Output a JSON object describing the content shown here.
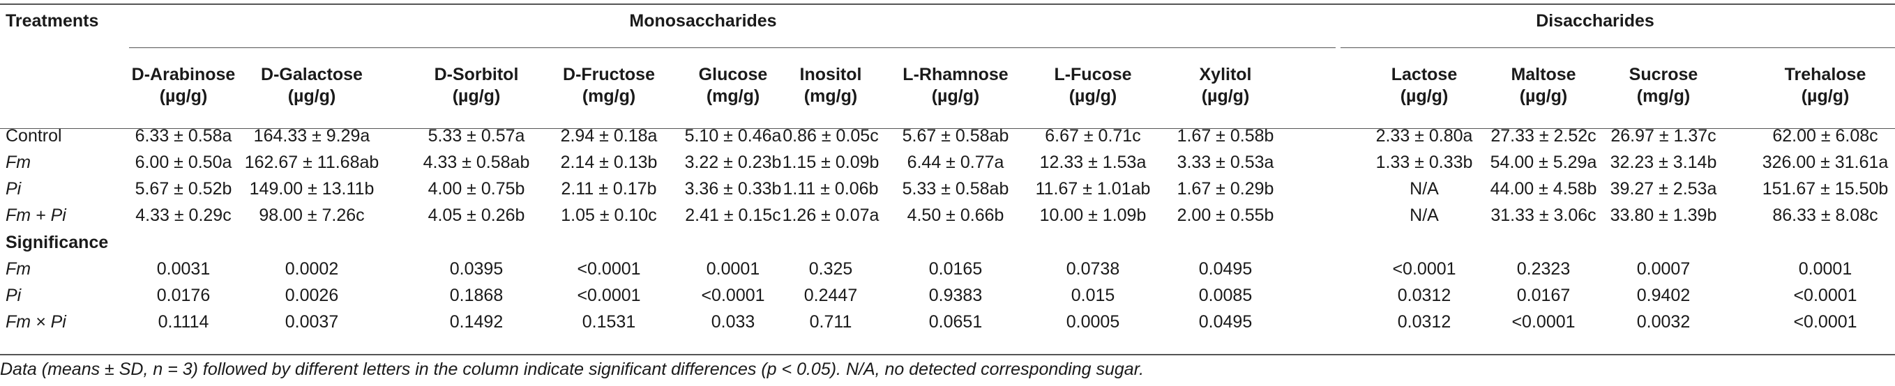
{
  "table": {
    "treatments_label": "Treatments",
    "group_mono": "Monosaccharides",
    "group_di": "Disaccharides",
    "columns": [
      {
        "name": "D-Arabinose",
        "unit": "(µg/g)"
      },
      {
        "name": "D-Galactose",
        "unit": "(µg/g)"
      },
      {
        "name": "D-Sorbitol",
        "unit": "(µg/g)"
      },
      {
        "name": "D-Fructose",
        "unit": "(mg/g)"
      },
      {
        "name": "Glucose",
        "unit": "(mg/g)"
      },
      {
        "name": "Inositol",
        "unit": "(mg/g)"
      },
      {
        "name": "L-Rhamnose",
        "unit": "(µg/g)"
      },
      {
        "name": "L-Fucose",
        "unit": "(µg/g)"
      },
      {
        "name": "Xylitol",
        "unit": "(µg/g)"
      },
      {
        "name": "Lactose",
        "unit": "(µg/g)"
      },
      {
        "name": "Maltose",
        "unit": "(µg/g)"
      },
      {
        "name": "Sucrose",
        "unit": "(mg/g)"
      },
      {
        "name": "Trehalose",
        "unit": "(µg/g)"
      }
    ],
    "rows": [
      {
        "label": "Control",
        "italic": false,
        "values": [
          "6.33 ± 0.58a",
          "164.33 ± 9.29a",
          "5.33 ± 0.57a",
          "2.94 ± 0.18a",
          "5.10 ± 0.46a",
          "0.86 ± 0.05c",
          "5.67 ± 0.58ab",
          "6.67 ± 0.71c",
          "1.67 ± 0.58b",
          "2.33 ± 0.80a",
          "27.33 ± 2.52c",
          "26.97 ± 1.37c",
          "62.00 ± 6.08c"
        ]
      },
      {
        "label": "Fm",
        "italic": true,
        "values": [
          "6.00 ± 0.50a",
          "162.67 ± 11.68ab",
          "4.33 ± 0.58ab",
          "2.14 ± 0.13b",
          "3.22 ± 0.23b",
          "1.15 ± 0.09b",
          "6.44 ± 0.77a",
          "12.33 ± 1.53a",
          "3.33 ± 0.53a",
          "1.33 ± 0.33b",
          "54.00 ± 5.29a",
          "32.23 ± 3.14b",
          "326.00 ± 31.61a"
        ]
      },
      {
        "label": "Pi",
        "italic": true,
        "values": [
          "5.67 ± 0.52b",
          "149.00 ± 13.11b",
          "4.00 ± 0.75b",
          "2.11 ± 0.17b",
          "3.36 ± 0.33b",
          "1.11 ± 0.06b",
          "5.33 ± 0.58ab",
          "11.67 ± 1.01ab",
          "1.67 ± 0.29b",
          "N/A",
          "44.00 ± 4.58b",
          "39.27 ± 2.53a",
          "151.67 ± 15.50b"
        ]
      },
      {
        "label": "Fm + Pi",
        "italic": true,
        "values": [
          "4.33 ± 0.29c",
          "98.00 ± 7.26c",
          "4.05 ± 0.26b",
          "1.05 ± 0.10c",
          "2.41 ± 0.15c",
          "1.26 ± 0.07a",
          "4.50 ± 0.66b",
          "10.00 ± 1.09b",
          "2.00 ± 0.55b",
          "N/A",
          "31.33 ± 3.06c",
          "33.80 ± 1.39b",
          "86.33 ± 8.08c"
        ]
      }
    ],
    "significance_label": "Significance",
    "sig_rows": [
      {
        "label": "Fm",
        "values": [
          "0.0031",
          "0.0002",
          "0.0395",
          "<0.0001",
          "0.0001",
          "0.325",
          "0.0165",
          "0.0738",
          "0.0495",
          "<0.0001",
          "0.2323",
          "0.0007",
          "0.0001"
        ]
      },
      {
        "label": "Pi",
        "values": [
          "0.0176",
          "0.0026",
          "0.1868",
          "<0.0001",
          "<0.0001",
          "0.2447",
          "0.9383",
          "0.015",
          "0.0085",
          "0.0312",
          "0.0167",
          "0.9402",
          "<0.0001"
        ]
      },
      {
        "label": "Fm × Pi",
        "values": [
          "0.1114",
          "0.0037",
          "0.1492",
          "0.1531",
          "0.033",
          "0.711",
          "0.0651",
          "0.0005",
          "0.0495",
          "0.0312",
          "<0.0001",
          "0.0032",
          "<0.0001"
        ]
      }
    ],
    "footnote": "Data (means ± SD, n = 3) followed by different letters in the column indicate significant differences (p < 0.05). N/A, no detected corresponding sugar."
  }
}
